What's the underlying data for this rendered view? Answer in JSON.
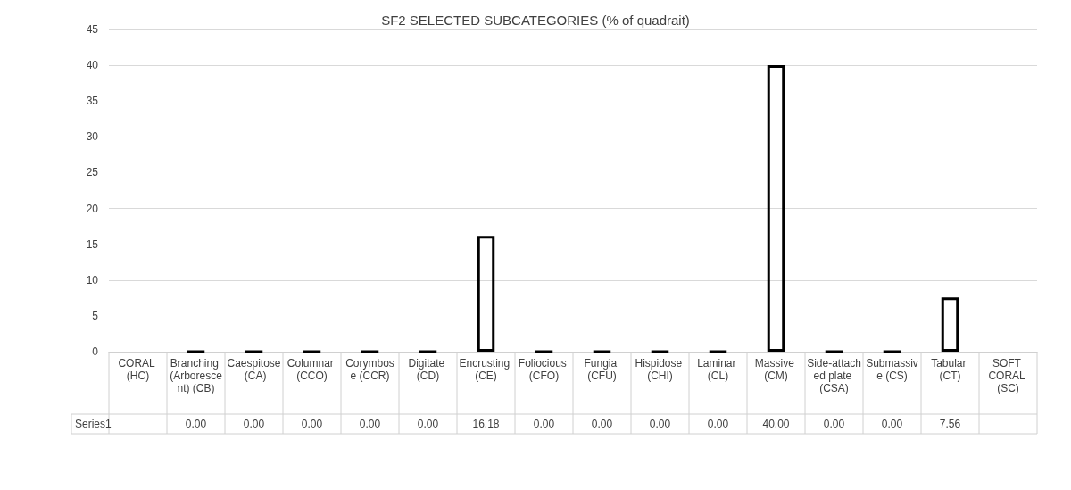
{
  "chart_data": {
    "type": "bar",
    "title": "SF2 SELECTED SUBCATEGORIES (% of quadrait)",
    "categories": [
      "CORAL (HC)",
      "Branching (Arborescent) (CB)",
      "Caespitose (CA)",
      "Columnar (CCO)",
      "Corymbose (CCR)",
      "Digitate (CD)",
      "Encrusting (CE)",
      "Foliocious (CFO)",
      "Fungia (CFU)",
      "Hispidose (CHI)",
      "Laminar (CL)",
      "Massive (CM)",
      "Side-attached plate (CSA)",
      "Submassive (CS)",
      "Tabular (CT)",
      "SOFT CORAL (SC)"
    ],
    "series": [
      {
        "name": "Series1",
        "color": "#000000",
        "values": [
          null,
          0,
          0,
          0,
          0,
          0,
          16.18,
          0,
          0,
          0,
          0,
          40,
          0,
          0,
          7.56,
          null
        ],
        "value_labels": [
          null,
          "0.00",
          "0.00",
          "0.00",
          "0.00",
          "0.00",
          "16.18",
          "0.00",
          "0.00",
          "0.00",
          "0.00",
          "40.00",
          "0.00",
          "0.00",
          "7.56",
          null
        ]
      }
    ],
    "ylim": [
      0,
      45
    ],
    "yticks": [
      0,
      5,
      10,
      15,
      20,
      25,
      30,
      35,
      40,
      45
    ],
    "grid": "y"
  }
}
